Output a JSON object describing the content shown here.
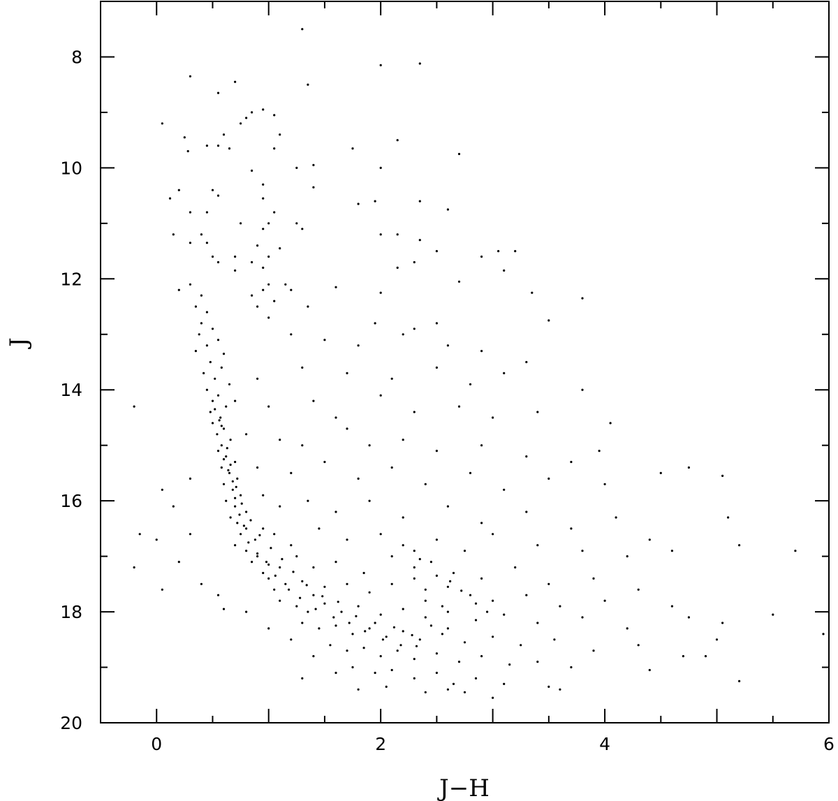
{
  "chart_data": {
    "type": "scatter",
    "title": "",
    "xlabel": "J−H",
    "ylabel": "J",
    "xlim": [
      -0.5,
      6
    ],
    "ylim": [
      7,
      20
    ],
    "y_inverted": true,
    "grid": false,
    "marker_color": "#000000",
    "x_ticks": [
      "0",
      "2",
      "4",
      "6"
    ],
    "y_ticks": [
      "8",
      "10",
      "12",
      "14",
      "16",
      "18",
      "20"
    ],
    "points_note_sample": true,
    "points": [
      [
        1.3,
        7.5
      ],
      [
        2.0,
        8.15
      ],
      [
        2.35,
        8.12
      ],
      [
        0.3,
        8.35
      ],
      [
        0.7,
        8.45
      ],
      [
        1.35,
        8.5
      ],
      [
        0.55,
        8.65
      ],
      [
        0.85,
        9.0
      ],
      [
        0.95,
        8.95
      ],
      [
        1.05,
        9.05
      ],
      [
        0.05,
        9.2
      ],
      [
        0.6,
        9.4
      ],
      [
        0.55,
        9.6
      ],
      [
        0.45,
        9.6
      ],
      [
        0.65,
        9.65
      ],
      [
        0.75,
        9.2
      ],
      [
        0.8,
        9.1
      ],
      [
        1.1,
        9.4
      ],
      [
        1.05,
        9.65
      ],
      [
        1.75,
        9.65
      ],
      [
        2.7,
        9.75
      ],
      [
        2.15,
        9.5
      ],
      [
        0.25,
        9.45
      ],
      [
        0.28,
        9.7
      ],
      [
        0.85,
        10.05
      ],
      [
        1.25,
        10.0
      ],
      [
        1.4,
        9.95
      ],
      [
        2.0,
        10.0
      ],
      [
        0.95,
        10.3
      ],
      [
        0.2,
        10.4
      ],
      [
        0.5,
        10.4
      ],
      [
        0.95,
        10.55
      ],
      [
        1.4,
        10.35
      ],
      [
        0.12,
        10.55
      ],
      [
        0.55,
        10.5
      ],
      [
        1.8,
        10.65
      ],
      [
        1.95,
        10.6
      ],
      [
        2.35,
        10.6
      ],
      [
        2.6,
        10.75
      ],
      [
        0.3,
        10.8
      ],
      [
        0.45,
        10.8
      ],
      [
        1.05,
        10.8
      ],
      [
        0.75,
        11.0
      ],
      [
        0.95,
        11.1
      ],
      [
        1.0,
        11.0
      ],
      [
        1.25,
        11.0
      ],
      [
        1.3,
        11.1
      ],
      [
        0.4,
        11.2
      ],
      [
        0.15,
        11.2
      ],
      [
        2.0,
        11.2
      ],
      [
        2.15,
        11.2
      ],
      [
        2.35,
        11.3
      ],
      [
        0.3,
        11.35
      ],
      [
        0.45,
        11.35
      ],
      [
        0.9,
        11.4
      ],
      [
        1.1,
        11.45
      ],
      [
        2.5,
        11.5
      ],
      [
        3.05,
        11.5
      ],
      [
        3.2,
        11.5
      ],
      [
        2.9,
        11.6
      ],
      [
        0.5,
        11.6
      ],
      [
        0.55,
        11.7
      ],
      [
        0.7,
        11.6
      ],
      [
        0.85,
        11.7
      ],
      [
        0.95,
        11.8
      ],
      [
        1.0,
        11.6
      ],
      [
        3.1,
        11.85
      ],
      [
        0.7,
        11.85
      ],
      [
        2.3,
        11.7
      ],
      [
        2.15,
        11.8
      ],
      [
        2.7,
        12.05
      ],
      [
        1.6,
        12.15
      ],
      [
        2.0,
        12.25
      ],
      [
        3.35,
        12.25
      ],
      [
        3.8,
        12.35
      ],
      [
        1.0,
        12.1
      ],
      [
        0.95,
        12.2
      ],
      [
        0.85,
        12.3
      ],
      [
        1.05,
        12.4
      ],
      [
        1.15,
        12.1
      ],
      [
        1.2,
        12.2
      ],
      [
        0.3,
        12.1
      ],
      [
        0.2,
        12.2
      ],
      [
        0.4,
        12.3
      ],
      [
        0.35,
        12.5
      ],
      [
        0.45,
        12.6
      ],
      [
        1.35,
        12.5
      ],
      [
        0.9,
        12.5
      ],
      [
        1.0,
        12.7
      ],
      [
        3.5,
        12.75
      ],
      [
        2.5,
        12.8
      ],
      [
        2.3,
        12.9
      ],
      [
        1.95,
        12.8
      ],
      [
        0.4,
        12.8
      ],
      [
        0.5,
        12.9
      ],
      [
        0.38,
        13.0
      ],
      [
        0.55,
        13.1
      ],
      [
        0.45,
        13.2
      ],
      [
        0.35,
        13.3
      ],
      [
        0.6,
        13.35
      ],
      [
        1.2,
        13.0
      ],
      [
        1.5,
        13.1
      ],
      [
        1.8,
        13.2
      ],
      [
        2.2,
        13.0
      ],
      [
        2.6,
        13.2
      ],
      [
        2.9,
        13.3
      ],
      [
        3.3,
        13.5
      ],
      [
        0.48,
        13.5
      ],
      [
        0.58,
        13.6
      ],
      [
        0.42,
        13.7
      ],
      [
        0.52,
        13.8
      ],
      [
        0.65,
        13.9
      ],
      [
        0.9,
        13.8
      ],
      [
        1.3,
        13.6
      ],
      [
        1.7,
        13.7
      ],
      [
        2.1,
        13.8
      ],
      [
        2.5,
        13.6
      ],
      [
        2.8,
        13.9
      ],
      [
        3.1,
        13.7
      ],
      [
        3.8,
        14.0
      ],
      [
        0.45,
        14.0
      ],
      [
        0.55,
        14.1
      ],
      [
        0.5,
        14.2
      ],
      [
        0.62,
        14.3
      ],
      [
        0.48,
        14.4
      ],
      [
        0.57,
        14.5
      ],
      [
        0.7,
        14.2
      ],
      [
        1.0,
        14.3
      ],
      [
        1.4,
        14.2
      ],
      [
        1.6,
        14.5
      ],
      [
        2.0,
        14.1
      ],
      [
        2.3,
        14.4
      ],
      [
        2.7,
        14.3
      ],
      [
        3.0,
        14.5
      ],
      [
        3.4,
        14.4
      ],
      [
        4.05,
        14.6
      ],
      [
        -0.2,
        14.3
      ],
      [
        0.5,
        14.6
      ],
      [
        0.6,
        14.7
      ],
      [
        0.54,
        14.8
      ],
      [
        0.66,
        14.9
      ],
      [
        0.58,
        15.0
      ],
      [
        0.8,
        14.8
      ],
      [
        1.1,
        14.9
      ],
      [
        1.3,
        15.0
      ],
      [
        1.7,
        14.7
      ],
      [
        1.9,
        15.0
      ],
      [
        2.2,
        14.9
      ],
      [
        2.5,
        15.1
      ],
      [
        2.9,
        15.0
      ],
      [
        3.3,
        15.2
      ],
      [
        3.7,
        15.3
      ],
      [
        3.95,
        15.1
      ],
      [
        0.55,
        15.1
      ],
      [
        0.62,
        15.2
      ],
      [
        0.7,
        15.3
      ],
      [
        0.58,
        15.4
      ],
      [
        0.65,
        15.5
      ],
      [
        0.72,
        15.6
      ],
      [
        0.6,
        15.7
      ],
      [
        0.9,
        15.4
      ],
      [
        1.2,
        15.5
      ],
      [
        1.5,
        15.3
      ],
      [
        1.8,
        15.6
      ],
      [
        2.1,
        15.4
      ],
      [
        2.4,
        15.7
      ],
      [
        2.8,
        15.5
      ],
      [
        3.1,
        15.8
      ],
      [
        3.5,
        15.6
      ],
      [
        4.0,
        15.7
      ],
      [
        4.5,
        15.5
      ],
      [
        4.75,
        15.4
      ],
      [
        5.05,
        15.55
      ],
      [
        0.3,
        15.6
      ],
      [
        0.68,
        15.8
      ],
      [
        0.75,
        15.9
      ],
      [
        0.62,
        16.0
      ],
      [
        0.7,
        16.1
      ],
      [
        0.8,
        16.2
      ],
      [
        0.66,
        16.3
      ],
      [
        0.95,
        15.9
      ],
      [
        1.1,
        16.1
      ],
      [
        1.35,
        16.0
      ],
      [
        1.6,
        16.2
      ],
      [
        1.9,
        16.0
      ],
      [
        2.2,
        16.3
      ],
      [
        2.6,
        16.1
      ],
      [
        2.9,
        16.4
      ],
      [
        3.3,
        16.2
      ],
      [
        3.7,
        16.5
      ],
      [
        4.1,
        16.3
      ],
      [
        4.4,
        16.7
      ],
      [
        5.1,
        16.3
      ],
      [
        0.05,
        15.8
      ],
      [
        0.15,
        16.1
      ],
      [
        0.72,
        16.4
      ],
      [
        0.8,
        16.5
      ],
      [
        0.75,
        16.6
      ],
      [
        0.88,
        16.7
      ],
      [
        0.7,
        16.8
      ],
      [
        0.95,
        16.5
      ],
      [
        1.05,
        16.6
      ],
      [
        1.2,
        16.8
      ],
      [
        1.45,
        16.5
      ],
      [
        1.7,
        16.7
      ],
      [
        2.0,
        16.6
      ],
      [
        2.3,
        16.9
      ],
      [
        2.5,
        16.7
      ],
      [
        2.75,
        16.9
      ],
      [
        3.0,
        16.6
      ],
      [
        3.4,
        16.8
      ],
      [
        3.8,
        16.9
      ],
      [
        4.2,
        17.0
      ],
      [
        4.6,
        16.9
      ],
      [
        5.2,
        16.8
      ],
      [
        -0.15,
        16.6
      ],
      [
        0.0,
        16.7
      ],
      [
        0.3,
        16.6
      ],
      [
        0.8,
        16.9
      ],
      [
        0.9,
        17.0
      ],
      [
        0.85,
        17.1
      ],
      [
        1.0,
        17.15
      ],
      [
        0.95,
        17.3
      ],
      [
        1.1,
        17.2
      ],
      [
        1.25,
        17.0
      ],
      [
        1.4,
        17.2
      ],
      [
        1.6,
        17.1
      ],
      [
        1.85,
        17.3
      ],
      [
        2.1,
        17.0
      ],
      [
        2.3,
        17.2
      ],
      [
        2.45,
        17.1
      ],
      [
        2.65,
        17.3
      ],
      [
        2.9,
        17.4
      ],
      [
        3.2,
        17.2
      ],
      [
        3.5,
        17.5
      ],
      [
        3.9,
        17.4
      ],
      [
        4.3,
        17.6
      ],
      [
        5.7,
        16.9
      ],
      [
        -0.2,
        17.2
      ],
      [
        0.2,
        17.1
      ],
      [
        1.0,
        17.4
      ],
      [
        1.15,
        17.5
      ],
      [
        1.05,
        17.6
      ],
      [
        1.3,
        17.45
      ],
      [
        1.5,
        17.55
      ],
      [
        1.4,
        17.7
      ],
      [
        1.7,
        17.5
      ],
      [
        1.9,
        17.65
      ],
      [
        2.1,
        17.5
      ],
      [
        2.4,
        17.6
      ],
      [
        2.6,
        17.55
      ],
      [
        2.8,
        17.7
      ],
      [
        3.0,
        17.8
      ],
      [
        3.3,
        17.7
      ],
      [
        3.6,
        17.9
      ],
      [
        4.0,
        17.8
      ],
      [
        4.6,
        17.9
      ],
      [
        0.4,
        17.5
      ],
      [
        0.05,
        17.6
      ],
      [
        0.55,
        17.7
      ],
      [
        1.1,
        17.8
      ],
      [
        1.25,
        17.9
      ],
      [
        1.35,
        18.0
      ],
      [
        1.5,
        17.85
      ],
      [
        1.65,
        18.0
      ],
      [
        1.8,
        17.9
      ],
      [
        2.0,
        18.05
      ],
      [
        2.2,
        17.95
      ],
      [
        2.4,
        18.1
      ],
      [
        2.6,
        18.0
      ],
      [
        2.85,
        18.15
      ],
      [
        3.1,
        18.05
      ],
      [
        3.4,
        18.2
      ],
      [
        3.8,
        18.1
      ],
      [
        4.2,
        18.3
      ],
      [
        4.75,
        18.1
      ],
      [
        5.05,
        18.2
      ],
      [
        5.5,
        18.05
      ],
      [
        0.8,
        18.0
      ],
      [
        0.6,
        17.95
      ],
      [
        1.3,
        18.2
      ],
      [
        1.45,
        18.3
      ],
      [
        1.6,
        18.25
      ],
      [
        1.75,
        18.4
      ],
      [
        1.9,
        18.3
      ],
      [
        2.05,
        18.45
      ],
      [
        2.2,
        18.35
      ],
      [
        2.35,
        18.5
      ],
      [
        2.55,
        18.4
      ],
      [
        2.75,
        18.55
      ],
      [
        3.0,
        18.45
      ],
      [
        3.25,
        18.6
      ],
      [
        3.55,
        18.5
      ],
      [
        3.9,
        18.7
      ],
      [
        4.3,
        18.6
      ],
      [
        4.7,
        18.8
      ],
      [
        5.0,
        18.5
      ],
      [
        5.95,
        18.4
      ],
      [
        1.0,
        18.3
      ],
      [
        1.2,
        18.5
      ],
      [
        1.55,
        18.6
      ],
      [
        1.7,
        18.7
      ],
      [
        1.85,
        18.65
      ],
      [
        2.0,
        18.8
      ],
      [
        2.15,
        18.7
      ],
      [
        2.3,
        18.85
      ],
      [
        2.5,
        18.75
      ],
      [
        2.7,
        18.9
      ],
      [
        2.9,
        18.8
      ],
      [
        3.15,
        18.95
      ],
      [
        3.4,
        18.9
      ],
      [
        3.7,
        19.0
      ],
      [
        4.4,
        19.05
      ],
      [
        4.9,
        18.8
      ],
      [
        1.4,
        18.8
      ],
      [
        1.75,
        19.0
      ],
      [
        1.95,
        19.1
      ],
      [
        2.1,
        19.05
      ],
      [
        2.3,
        19.2
      ],
      [
        2.5,
        19.1
      ],
      [
        2.65,
        19.3
      ],
      [
        2.85,
        19.2
      ],
      [
        3.1,
        19.3
      ],
      [
        3.5,
        19.35
      ],
      [
        1.6,
        19.1
      ],
      [
        1.8,
        19.4
      ],
      [
        2.05,
        19.35
      ],
      [
        2.4,
        19.45
      ],
      [
        2.6,
        19.4
      ],
      [
        3.0,
        19.55
      ],
      [
        5.2,
        19.25
      ],
      [
        3.6,
        19.4
      ],
      [
        1.3,
        19.2
      ],
      [
        2.75,
        19.45
      ],
      [
        0.58,
        14.65
      ],
      [
        0.6,
        15.25
      ],
      [
        0.64,
        15.45
      ],
      [
        0.68,
        15.65
      ],
      [
        0.7,
        15.95
      ],
      [
        0.74,
        16.25
      ],
      [
        0.78,
        16.45
      ],
      [
        0.82,
        16.75
      ],
      [
        0.9,
        16.95
      ],
      [
        0.98,
        17.1
      ],
      [
        1.06,
        17.35
      ],
      [
        1.18,
        17.6
      ],
      [
        1.28,
        17.75
      ],
      [
        1.42,
        17.95
      ],
      [
        1.58,
        18.1
      ],
      [
        1.72,
        18.2
      ],
      [
        1.86,
        18.35
      ],
      [
        2.02,
        18.5
      ],
      [
        2.18,
        18.6
      ],
      [
        2.32,
        18.62
      ],
      [
        0.52,
        14.35
      ],
      [
        0.56,
        14.55
      ],
      [
        0.63,
        15.05
      ],
      [
        0.66,
        15.35
      ],
      [
        0.71,
        15.75
      ],
      [
        0.76,
        16.05
      ],
      [
        0.84,
        16.35
      ],
      [
        0.92,
        16.62
      ],
      [
        1.02,
        16.85
      ],
      [
        1.12,
        17.05
      ],
      [
        1.22,
        17.28
      ],
      [
        1.34,
        17.52
      ],
      [
        1.48,
        17.72
      ],
      [
        1.62,
        17.82
      ],
      [
        1.78,
        18.08
      ],
      [
        1.95,
        18.2
      ],
      [
        2.12,
        18.28
      ],
      [
        2.28,
        18.42
      ],
      [
        2.45,
        18.25
      ],
      [
        2.6,
        18.3
      ],
      [
        2.2,
        16.8
      ],
      [
        2.35,
        17.05
      ],
      [
        2.5,
        17.35
      ],
      [
        2.62,
        17.45
      ],
      [
        2.72,
        17.62
      ],
      [
        2.85,
        17.85
      ],
      [
        2.95,
        18.0
      ],
      [
        2.3,
        17.4
      ],
      [
        2.4,
        17.8
      ],
      [
        2.55,
        17.9
      ]
    ]
  }
}
